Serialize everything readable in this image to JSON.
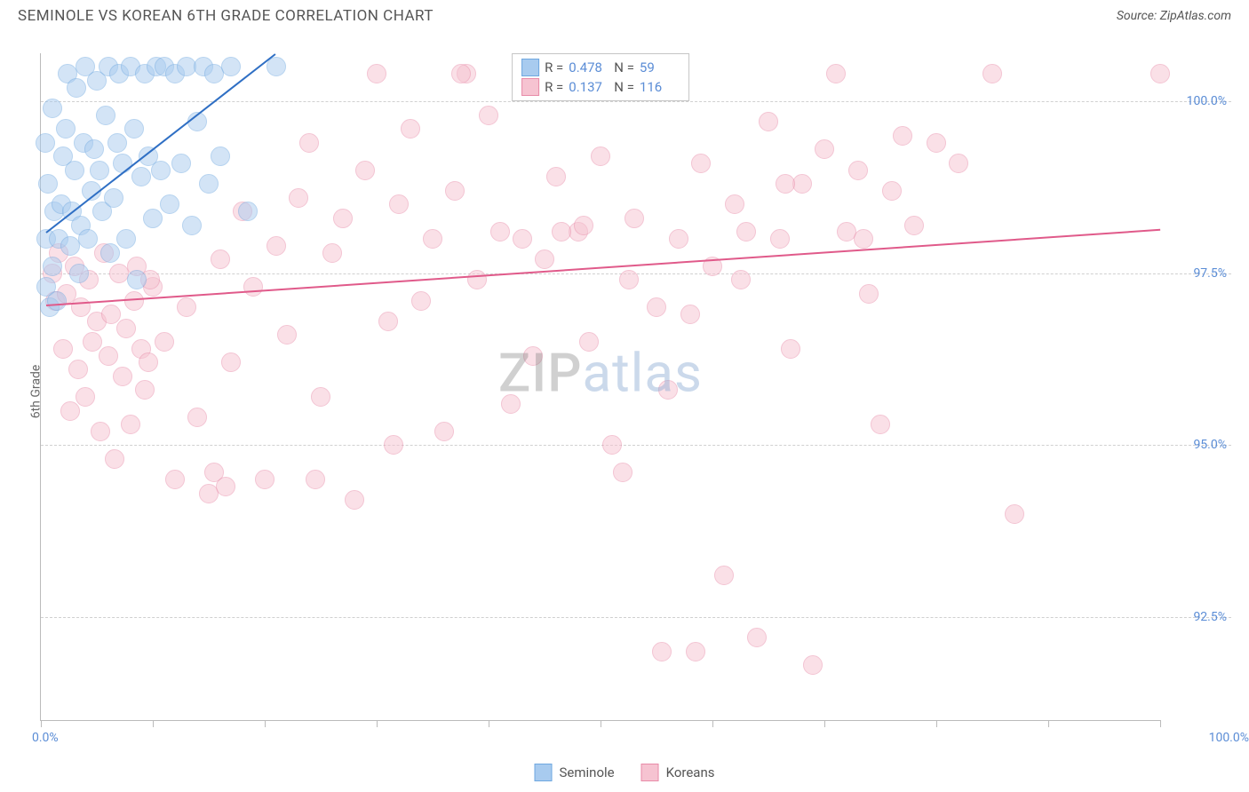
{
  "header": {
    "title": "SEMINOLE VS KOREAN 6TH GRADE CORRELATION CHART",
    "source": "Source: ZipAtlas.com"
  },
  "chart": {
    "type": "scatter",
    "yaxis_title": "6th Grade",
    "xlim": [
      0,
      100
    ],
    "ylim": [
      91,
      100.7
    ],
    "xticks": [
      0,
      10,
      20,
      30,
      40,
      50,
      60,
      70,
      80,
      90,
      100
    ],
    "yticks": [
      92.5,
      95.0,
      97.5,
      100.0
    ],
    "ytick_labels": [
      "92.5%",
      "95.0%",
      "97.5%",
      "100.0%"
    ],
    "xlabel_min": "0.0%",
    "xlabel_max": "100.0%",
    "grid_color": "#d0d0d0",
    "axis_color": "#bbbbbb",
    "background_color": "#ffffff",
    "label_color": "#5b8dd6",
    "marker_radius": 11,
    "marker_opacity": 0.5,
    "series": [
      {
        "name": "Seminole",
        "color_fill": "#a8cbef",
        "color_stroke": "#6fa8e0",
        "R": "0.478",
        "N": "59",
        "trend": {
          "x1": 0.5,
          "y1": 98.1,
          "x2": 21,
          "y2": 100.7,
          "color": "#2f6fc4",
          "width": 2
        },
        "points": [
          [
            0.5,
            97.3
          ],
          [
            0.8,
            97.0
          ],
          [
            0.5,
            98.0
          ],
          [
            1.0,
            97.6
          ],
          [
            1.2,
            98.4
          ],
          [
            0.6,
            98.8
          ],
          [
            0.4,
            99.4
          ],
          [
            1.0,
            99.9
          ],
          [
            1.4,
            97.1
          ],
          [
            1.6,
            98.0
          ],
          [
            1.8,
            98.5
          ],
          [
            2.0,
            99.2
          ],
          [
            2.2,
            99.6
          ],
          [
            2.4,
            100.4
          ],
          [
            2.6,
            97.9
          ],
          [
            2.8,
            98.4
          ],
          [
            3.0,
            99.0
          ],
          [
            3.2,
            100.2
          ],
          [
            3.4,
            97.5
          ],
          [
            3.6,
            98.2
          ],
          [
            3.8,
            99.4
          ],
          [
            4.0,
            100.5
          ],
          [
            4.2,
            98.0
          ],
          [
            4.5,
            98.7
          ],
          [
            4.8,
            99.3
          ],
          [
            5.0,
            100.3
          ],
          [
            5.2,
            99.0
          ],
          [
            5.5,
            98.4
          ],
          [
            5.8,
            99.8
          ],
          [
            6.0,
            100.5
          ],
          [
            6.2,
            97.8
          ],
          [
            6.5,
            98.6
          ],
          [
            6.8,
            99.4
          ],
          [
            7.0,
            100.4
          ],
          [
            7.3,
            99.1
          ],
          [
            7.6,
            98.0
          ],
          [
            8.0,
            100.5
          ],
          [
            8.3,
            99.6
          ],
          [
            8.6,
            97.4
          ],
          [
            9.0,
            98.9
          ],
          [
            9.3,
            100.4
          ],
          [
            9.6,
            99.2
          ],
          [
            10.0,
            98.3
          ],
          [
            10.3,
            100.5
          ],
          [
            10.7,
            99.0
          ],
          [
            11.0,
            100.5
          ],
          [
            11.5,
            98.5
          ],
          [
            12.0,
            100.4
          ],
          [
            12.5,
            99.1
          ],
          [
            13.0,
            100.5
          ],
          [
            13.5,
            98.2
          ],
          [
            14.0,
            99.7
          ],
          [
            14.5,
            100.5
          ],
          [
            15.0,
            98.8
          ],
          [
            15.5,
            100.4
          ],
          [
            16.0,
            99.2
          ],
          [
            17.0,
            100.5
          ],
          [
            18.5,
            98.4
          ],
          [
            21.0,
            100.5
          ]
        ]
      },
      {
        "name": "Koreans",
        "color_fill": "#f6c3d1",
        "color_stroke": "#e88ba8",
        "R": "0.137",
        "N": "116",
        "trend": {
          "x1": 0.5,
          "y1": 97.05,
          "x2": 100,
          "y2": 98.15,
          "color": "#e05a8a",
          "width": 2
        },
        "points": [
          [
            1.0,
            97.5
          ],
          [
            1.3,
            97.1
          ],
          [
            1.6,
            97.8
          ],
          [
            2.0,
            96.4
          ],
          [
            2.3,
            97.2
          ],
          [
            2.6,
            95.5
          ],
          [
            3.0,
            97.6
          ],
          [
            3.3,
            96.1
          ],
          [
            3.6,
            97.0
          ],
          [
            4.0,
            95.7
          ],
          [
            4.3,
            97.4
          ],
          [
            4.6,
            96.5
          ],
          [
            5.0,
            96.8
          ],
          [
            5.3,
            95.2
          ],
          [
            5.6,
            97.8
          ],
          [
            6.0,
            96.3
          ],
          [
            6.3,
            96.9
          ],
          [
            6.6,
            94.8
          ],
          [
            7.0,
            97.5
          ],
          [
            7.3,
            96.0
          ],
          [
            7.6,
            96.7
          ],
          [
            8.0,
            95.3
          ],
          [
            8.3,
            97.1
          ],
          [
            8.6,
            97.6
          ],
          [
            9.0,
            96.4
          ],
          [
            9.3,
            95.8
          ],
          [
            9.6,
            96.2
          ],
          [
            10.0,
            97.3
          ],
          [
            11.0,
            96.5
          ],
          [
            12.0,
            94.5
          ],
          [
            13.0,
            97.0
          ],
          [
            14.0,
            95.4
          ],
          [
            15.0,
            94.3
          ],
          [
            16.0,
            97.7
          ],
          [
            17.0,
            96.2
          ],
          [
            18.0,
            98.4
          ],
          [
            19.0,
            97.3
          ],
          [
            20.0,
            94.5
          ],
          [
            21.0,
            97.9
          ],
          [
            22.0,
            96.6
          ],
          [
            23.0,
            98.6
          ],
          [
            24.0,
            99.4
          ],
          [
            25.0,
            95.7
          ],
          [
            26.0,
            97.8
          ],
          [
            27.0,
            98.3
          ],
          [
            28.0,
            94.2
          ],
          [
            29.0,
            99.0
          ],
          [
            30.0,
            100.4
          ],
          [
            31.0,
            96.8
          ],
          [
            32.0,
            98.5
          ],
          [
            33.0,
            99.6
          ],
          [
            34.0,
            97.1
          ],
          [
            35.0,
            98.0
          ],
          [
            36.0,
            95.2
          ],
          [
            37.0,
            98.7
          ],
          [
            38.0,
            100.4
          ],
          [
            39.0,
            97.4
          ],
          [
            40.0,
            99.8
          ],
          [
            41.0,
            98.1
          ],
          [
            42.0,
            95.6
          ],
          [
            43.0,
            98.0
          ],
          [
            44.0,
            96.3
          ],
          [
            45.0,
            97.7
          ],
          [
            46.0,
            98.9
          ],
          [
            47.0,
            100.4
          ],
          [
            48.0,
            98.1
          ],
          [
            49.0,
            96.5
          ],
          [
            50.0,
            99.2
          ],
          [
            51.0,
            95.0
          ],
          [
            52.0,
            94.6
          ],
          [
            53.0,
            98.3
          ],
          [
            54.0,
            100.4
          ],
          [
            55.0,
            97.0
          ],
          [
            56.0,
            95.8
          ],
          [
            57.0,
            98.0
          ],
          [
            58.0,
            96.9
          ],
          [
            59.0,
            99.1
          ],
          [
            60.0,
            97.6
          ],
          [
            61.0,
            93.1
          ],
          [
            62.0,
            98.5
          ],
          [
            63.0,
            98.1
          ],
          [
            64.0,
            92.2
          ],
          [
            65.0,
            99.7
          ],
          [
            66.0,
            98.0
          ],
          [
            67.0,
            96.4
          ],
          [
            68.0,
            98.8
          ],
          [
            69.0,
            91.8
          ],
          [
            70.0,
            99.3
          ],
          [
            71.0,
            100.4
          ],
          [
            72.0,
            98.1
          ],
          [
            73.0,
            99.0
          ],
          [
            74.0,
            97.2
          ],
          [
            75.0,
            95.3
          ],
          [
            76.0,
            98.7
          ],
          [
            77.0,
            99.5
          ],
          [
            78.0,
            98.2
          ],
          [
            80.0,
            99.4
          ],
          [
            82.0,
            99.1
          ],
          [
            85.0,
            100.4
          ],
          [
            87.0,
            94.0
          ],
          [
            100.0,
            100.4
          ],
          [
            15.5,
            94.6
          ],
          [
            16.5,
            94.4
          ],
          [
            24.5,
            94.5
          ],
          [
            31.5,
            95.0
          ],
          [
            37.5,
            100.4
          ],
          [
            46.5,
            98.1
          ],
          [
            48.5,
            98.2
          ],
          [
            55.5,
            92.0
          ],
          [
            58.5,
            92.0
          ],
          [
            44.5,
            100.4
          ],
          [
            52.5,
            97.4
          ],
          [
            62.5,
            97.4
          ],
          [
            66.5,
            98.8
          ],
          [
            73.5,
            98.0
          ],
          [
            9.8,
            97.4
          ]
        ]
      }
    ],
    "stats_box": {
      "r_label": "R =",
      "n_label": "N ="
    },
    "legend": {
      "items": [
        "Seminole",
        "Koreans"
      ]
    },
    "watermark": {
      "part1": "ZIP",
      "part2": "atlas"
    }
  }
}
